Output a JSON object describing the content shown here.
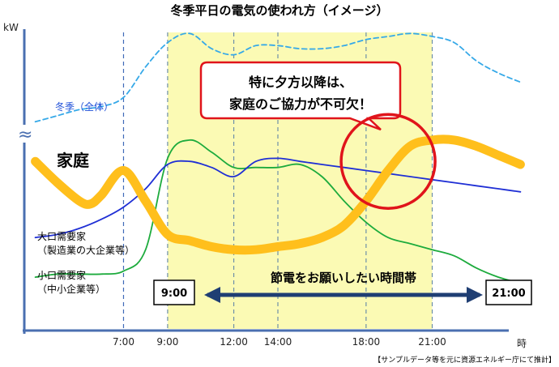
{
  "chart_data": {
    "type": "line",
    "title": "冬季平日の電気の使われ方（イメージ）",
    "ylabel": "kW",
    "xlabel": "時",
    "xlim": [
      2.5,
      25.5
    ],
    "ylim": [
      0,
      100
    ],
    "axis_break_symbol": "≈",
    "x_ticks": [
      {
        "value": 7,
        "label": "7:00"
      },
      {
        "value": 9,
        "label": "9:00"
      },
      {
        "value": 12,
        "label": "12:00"
      },
      {
        "value": 14,
        "label": "14:00"
      },
      {
        "value": 18,
        "label": "18:00"
      },
      {
        "value": 21,
        "label": "21:00"
      }
    ],
    "highlight": {
      "start": 9,
      "end": 21,
      "label": "節電をお願いしたい時間帯",
      "start_label": "9:00",
      "end_label": "21:00",
      "color": "#fbfab4"
    },
    "series": [
      {
        "name": "冬季（全体）",
        "color": "#36a9e8",
        "style": "dashed",
        "x": [
          3,
          4,
          5,
          6,
          7,
          8,
          9,
          10,
          11,
          12,
          13,
          14,
          15,
          16,
          17,
          18,
          19,
          20,
          21,
          22,
          23,
          24,
          25
        ],
        "y": [
          68,
          70,
          72,
          73,
          76,
          86,
          94,
          97,
          92,
          90,
          93,
          93,
          92,
          92,
          93,
          95,
          96,
          97,
          96,
          94,
          88,
          84,
          81
        ]
      },
      {
        "name": "家庭",
        "color": "#ffbf1c",
        "style": "thick",
        "x": [
          3,
          4,
          5,
          5.5,
          6,
          7,
          8,
          9,
          10,
          11,
          12,
          13,
          14,
          15,
          16,
          17,
          18,
          19,
          20,
          21,
          22,
          23,
          24,
          25
        ],
        "y": [
          55,
          48,
          42,
          41,
          44,
          52,
          42,
          31,
          29,
          27,
          26,
          26,
          27,
          28,
          30,
          34,
          42,
          52,
          60,
          62,
          62,
          60,
          57,
          54
        ],
        "label": "家庭"
      },
      {
        "name": "大口需要家（製造業の大企業等）",
        "color": "#1f2fd5",
        "style": "solid",
        "x": [
          3,
          4,
          5,
          6,
          7,
          8,
          9,
          10,
          11,
          12,
          13,
          14,
          15,
          16,
          17,
          18,
          19,
          20,
          21,
          22,
          23,
          24,
          25
        ],
        "y": [
          30,
          31,
          33,
          36,
          40,
          46,
          54,
          55,
          53,
          50,
          55,
          56,
          55,
          54,
          53,
          52,
          51,
          50,
          49,
          48,
          47,
          46,
          45
        ],
        "label_lines": [
          "大口需要家",
          "（製造業の大企業等）"
        ]
      },
      {
        "name": "小口需要家（中小企業等）",
        "color": "#1dab3d",
        "style": "solid",
        "x": [
          3,
          4,
          5,
          6,
          7,
          8,
          9,
          10,
          11,
          12,
          13,
          14,
          15,
          16,
          17,
          18,
          19,
          20,
          21,
          22,
          23,
          24,
          25
        ],
        "y": [
          17,
          18,
          18,
          18,
          19,
          26,
          56,
          62,
          58,
          53,
          53,
          53,
          54,
          50,
          42,
          35,
          30,
          28,
          26,
          24,
          20,
          17,
          15
        ],
        "label_lines": [
          "小口需要家",
          "（中小企業等）"
        ]
      }
    ],
    "annotation": {
      "lines": [
        "特に夕方以降は、",
        "家庭のご協力が不可欠！"
      ],
      "highlight_circle_at": {
        "x": 19,
        "y": 55
      }
    },
    "source": "【サンプルデータ等を元に資源エネルギー庁にて推計】"
  }
}
